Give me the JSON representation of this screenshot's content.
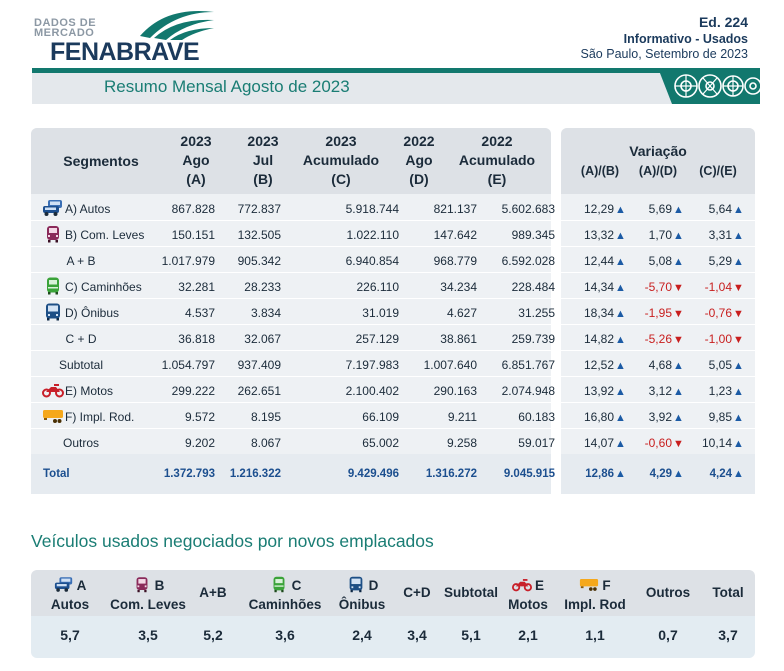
{
  "header": {
    "logo_sub_1": "DADOS DE",
    "logo_sub_2": "MERCADO",
    "logo_main": "FENABRAVE",
    "edition": "Ed. 224",
    "informativo": "Informativo - Usados",
    "location_date": "São Paulo, Setembro de 2023",
    "banner_title": "Resumo Mensal Agosto de 2023"
  },
  "colors": {
    "teal": "#12786e",
    "navy": "#1b3a5c",
    "up_arrow": "#1c5ba5",
    "down_arrow": "#c81e1e"
  },
  "table": {
    "segment_header": "Segmentos",
    "columns": [
      {
        "l1": "2023",
        "l2": "Ago",
        "l3": "(A)"
      },
      {
        "l1": "2023",
        "l2": "Jul",
        "l3": "(B)"
      },
      {
        "l1": "2023",
        "l2": "Acumulado",
        "l3": "(C)"
      },
      {
        "l1": "2022",
        "l2": "Ago",
        "l3": "(D)"
      },
      {
        "l1": "2022",
        "l2": "Acumulado",
        "l3": "(E)"
      }
    ],
    "variation_header": "Variação",
    "variation_columns": [
      "(A)/(B)",
      "(A)/(D)",
      "(C)/(E)"
    ],
    "rows": [
      {
        "label": "A) Autos",
        "icon": "car-icon",
        "values": [
          "867.828",
          "772.837",
          "5.918.744",
          "821.137",
          "5.602.683"
        ],
        "var": [
          "12,29",
          "5,69",
          "5,64"
        ],
        "dir": [
          "up",
          "up",
          "up"
        ]
      },
      {
        "label": "B) Com. Leves",
        "icon": "van-icon",
        "values": [
          "150.151",
          "132.505",
          "1.022.110",
          "147.642",
          "989.345"
        ],
        "var": [
          "13,32",
          "1,70",
          "3,31"
        ],
        "dir": [
          "up",
          "up",
          "up"
        ]
      },
      {
        "label": "A + B",
        "icon": "",
        "values": [
          "1.017.979",
          "905.342",
          "6.940.854",
          "968.779",
          "6.592.028"
        ],
        "var": [
          "12,44",
          "5,08",
          "5,29"
        ],
        "dir": [
          "up",
          "up",
          "up"
        ]
      },
      {
        "label": "C) Caminhões",
        "icon": "truck-icon",
        "values": [
          "32.281",
          "28.233",
          "226.110",
          "34.234",
          "228.484"
        ],
        "var": [
          "14,34",
          "-5,70",
          "-1,04"
        ],
        "dir": [
          "up",
          "down",
          "down"
        ]
      },
      {
        "label": "D) Ônibus",
        "icon": "bus-icon",
        "values": [
          "4.537",
          "3.834",
          "31.019",
          "4.627",
          "31.255"
        ],
        "var": [
          "18,34",
          "-1,95",
          "-0,76"
        ],
        "dir": [
          "up",
          "down",
          "down"
        ]
      },
      {
        "label": "C + D",
        "icon": "",
        "values": [
          "36.818",
          "32.067",
          "257.129",
          "38.861",
          "259.739"
        ],
        "var": [
          "14,82",
          "-5,26",
          "-1,00"
        ],
        "dir": [
          "up",
          "down",
          "down"
        ]
      },
      {
        "label": "Subtotal",
        "icon": "",
        "values": [
          "1.054.797",
          "937.409",
          "7.197.983",
          "1.007.640",
          "6.851.767"
        ],
        "var": [
          "12,52",
          "4,68",
          "5,05"
        ],
        "dir": [
          "up",
          "up",
          "up"
        ]
      },
      {
        "label": "E) Motos",
        "icon": "motorcycle-icon",
        "values": [
          "299.222",
          "262.651",
          "2.100.402",
          "290.163",
          "2.074.948"
        ],
        "var": [
          "13,92",
          "3,12",
          "1,23"
        ],
        "dir": [
          "up",
          "up",
          "up"
        ]
      },
      {
        "label": "F) Impl. Rod.",
        "icon": "trailer-icon",
        "values": [
          "9.572",
          "8.195",
          "66.109",
          "9.211",
          "60.183"
        ],
        "var": [
          "16,80",
          "3,92",
          "9,85"
        ],
        "dir": [
          "up",
          "up",
          "up"
        ]
      },
      {
        "label": "Outros",
        "icon": "",
        "values": [
          "9.202",
          "8.067",
          "65.002",
          "9.258",
          "59.017"
        ],
        "var": [
          "14,07",
          "-0,60",
          "10,14"
        ],
        "dir": [
          "up",
          "down",
          "up"
        ]
      }
    ],
    "total": {
      "label": "Total",
      "values": [
        "1.372.793",
        "1.216.322",
        "9.429.496",
        "1.316.272",
        "9.045.915"
      ],
      "var": [
        "12,86",
        "4,29",
        "4,24"
      ],
      "dir": [
        "up",
        "up",
        "up"
      ]
    }
  },
  "section2": {
    "title": "Veículos usados negociados por novos emplacados",
    "columns": [
      {
        "l1": "A",
        "l2": "Autos",
        "icon": "car-icon",
        "value": "5,7"
      },
      {
        "l1": "B",
        "l2": "Com. Leves",
        "icon": "van-icon",
        "value": "3,5"
      },
      {
        "l1": "A+B",
        "l2": "",
        "icon": "",
        "value": "5,2"
      },
      {
        "l1": "C",
        "l2": "Caminhões",
        "icon": "truck-icon",
        "value": "3,6"
      },
      {
        "l1": "D",
        "l2": "Ônibus",
        "icon": "bus-icon",
        "value": "2,4"
      },
      {
        "l1": "C+D",
        "l2": "",
        "icon": "",
        "value": "3,4"
      },
      {
        "l1": "Subtotal",
        "l2": "",
        "icon": "",
        "value": "5,1"
      },
      {
        "l1": "E",
        "l2": "Motos",
        "icon": "motorcycle-icon",
        "value": "2,1"
      },
      {
        "l1": "F",
        "l2": "Impl. Rod",
        "icon": "trailer-icon",
        "value": "1,1"
      },
      {
        "l1": "Outros",
        "l2": "",
        "icon": "",
        "value": "0,7"
      },
      {
        "l1": "Total",
        "l2": "",
        "icon": "",
        "value": "3,7"
      }
    ]
  }
}
